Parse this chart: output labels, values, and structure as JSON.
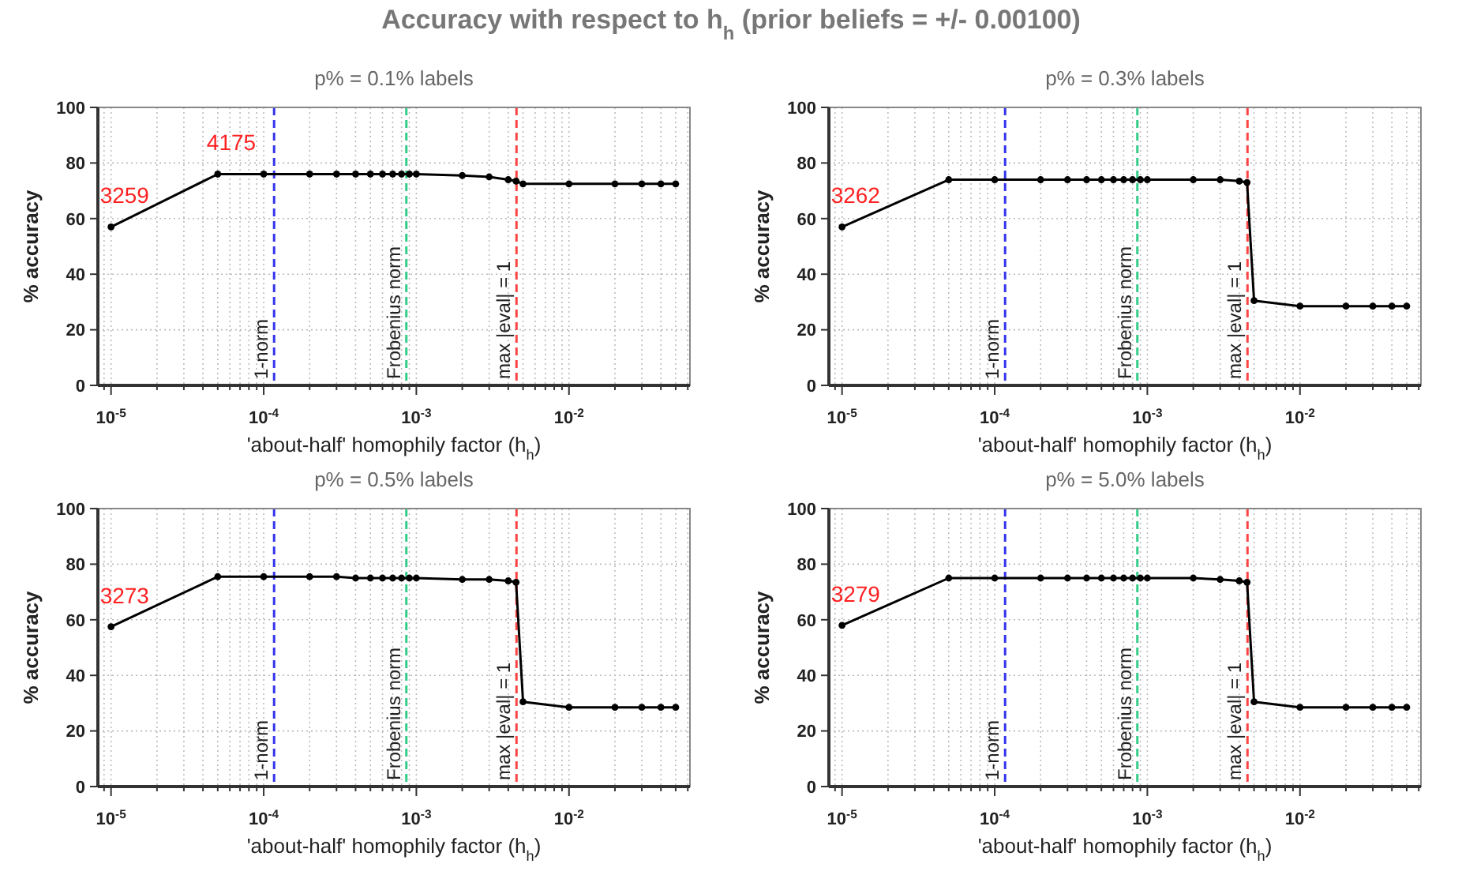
{
  "chart_data": [
    {
      "type": "line",
      "title": "Accuracy with respect to h$_{h}$ (prior beliefs = +/- 0.00100)",
      "subtitle": "p% = 0.1% labels",
      "xlabel": "'about-half' homophily factor (h$_{h}$)",
      "ylabel": "% accuracy",
      "log": "x",
      "grid": true,
      "marker": "circle",
      "line_style": "solid",
      "x": [
        1e-05,
        5e-05,
        0.0001,
        0.0002,
        0.0003,
        0.0004,
        0.0005,
        0.0006,
        0.0007,
        0.0008,
        0.0009,
        0.001,
        0.002,
        0.003,
        0.004,
        0.0045,
        0.005,
        0.01,
        0.02,
        0.03,
        0.04,
        0.05
      ],
      "series": [
        {
          "color": "#000000",
          "values": [
            57,
            76,
            76,
            76,
            76,
            76,
            76,
            76,
            76,
            76,
            76,
            76,
            75.5,
            75,
            74,
            73.5,
            72.5,
            72.5,
            72.5,
            72.5,
            72.5,
            72.5
          ]
        }
      ],
      "xlim": [
        8.2e-06,
        0.062
      ],
      "xticks": [
        {
          "value": 9e-06,
          "label": null
        },
        {
          "value": 1e-05,
          "label": "10$^{-5}$"
        },
        {
          "value": 2e-05,
          "label": null
        },
        {
          "value": 3e-05,
          "label": null
        },
        {
          "value": 4e-05,
          "label": null
        },
        {
          "value": 5e-05,
          "label": null
        },
        {
          "value": 6e-05,
          "label": null
        },
        {
          "value": 7e-05,
          "label": null
        },
        {
          "value": 8e-05,
          "label": null
        },
        {
          "value": 9e-05,
          "label": null
        },
        {
          "value": 0.0001,
          "label": "10$^{-4}$"
        },
        {
          "value": 0.0002,
          "label": null
        },
        {
          "value": 0.0003,
          "label": null
        },
        {
          "value": 0.0004,
          "label": null
        },
        {
          "value": 0.0005,
          "label": null
        },
        {
          "value": 0.0006,
          "label": null
        },
        {
          "value": 0.0007,
          "label": null
        },
        {
          "value": 0.0008,
          "label": null
        },
        {
          "value": 0.0009,
          "label": null
        },
        {
          "value": 0.001,
          "label": "10$^{-3}$"
        },
        {
          "value": 0.002,
          "label": null
        },
        {
          "value": 0.003,
          "label": null
        },
        {
          "value": 0.004,
          "label": null
        },
        {
          "value": 0.005,
          "label": null
        },
        {
          "value": 0.006,
          "label": null
        },
        {
          "value": 0.007,
          "label": null
        },
        {
          "value": 0.008,
          "label": null
        },
        {
          "value": 0.009,
          "label": null
        },
        {
          "value": 0.01,
          "label": "10$^{-2}$"
        },
        {
          "value": 0.02,
          "label": null
        },
        {
          "value": 0.03,
          "label": null
        },
        {
          "value": 0.04,
          "label": null
        },
        {
          "value": 0.05,
          "label": null
        },
        {
          "value": 0.06,
          "label": null
        }
      ],
      "ylim": [
        0,
        100
      ],
      "yticks": [
        0,
        20,
        40,
        60,
        80,
        100
      ],
      "ref_lines": [
        {
          "axis": "x",
          "value": 0.000117,
          "label": "1-norm",
          "color": "#3333ee",
          "line_style": "dashed"
        },
        {
          "axis": "x",
          "value": 0.00086,
          "label": "Frobenius norm",
          "color": "#33cc88",
          "line_style": "dashed"
        },
        {
          "axis": "x",
          "value": 0.00453,
          "color": "#ff4444",
          "line_style": "dashed"
        }
      ],
      "annotations": [
        {
          "text": "3259",
          "x": 1e-05,
          "y": 57
        },
        {
          "text": "4175",
          "x": 5e-05,
          "y": 76
        },
        {
          "text": "max |eval| = 1",
          "x": 0.00453
        }
      ]
    },
    {
      "type": "line",
      "subtitle": "p% = 0.3% labels",
      "xlabel": "'about-half' homophily factor (h$_{h}$)",
      "ylabel": "% accuracy",
      "log": "x",
      "grid": true,
      "marker": "circle",
      "line_style": "solid",
      "x": [
        1e-05,
        5e-05,
        0.0001,
        0.0002,
        0.0003,
        0.0004,
        0.0005,
        0.0006,
        0.0007,
        0.0008,
        0.0009,
        0.001,
        0.002,
        0.003,
        0.004,
        0.0045,
        0.005,
        0.01,
        0.02,
        0.03,
        0.04,
        0.05
      ],
      "series": [
        {
          "color": "#000000",
          "values": [
            57,
            74,
            74,
            74,
            74,
            74,
            74,
            74,
            74,
            74,
            74,
            74,
            74,
            74,
            73.5,
            73,
            30.5,
            28.5,
            28.5,
            28.5,
            28.5,
            28.5
          ]
        }
      ],
      "xlim": [
        8.2e-06,
        0.062
      ],
      "xticks": [
        {
          "value": 9e-06,
          "label": null
        },
        {
          "value": 1e-05,
          "label": "10$^{-5}$"
        },
        {
          "value": 2e-05,
          "label": null
        },
        {
          "value": 3e-05,
          "label": null
        },
        {
          "value": 4e-05,
          "label": null
        },
        {
          "value": 5e-05,
          "label": null
        },
        {
          "value": 6e-05,
          "label": null
        },
        {
          "value": 7e-05,
          "label": null
        },
        {
          "value": 8e-05,
          "label": null
        },
        {
          "value": 9e-05,
          "label": null
        },
        {
          "value": 0.0001,
          "label": "10$^{-4}$"
        },
        {
          "value": 0.0002,
          "label": null
        },
        {
          "value": 0.0003,
          "label": null
        },
        {
          "value": 0.0004,
          "label": null
        },
        {
          "value": 0.0005,
          "label": null
        },
        {
          "value": 0.0006,
          "label": null
        },
        {
          "value": 0.0007,
          "label": null
        },
        {
          "value": 0.0008,
          "label": null
        },
        {
          "value": 0.0009,
          "label": null
        },
        {
          "value": 0.001,
          "label": "10$^{-3}$"
        },
        {
          "value": 0.002,
          "label": null
        },
        {
          "value": 0.003,
          "label": null
        },
        {
          "value": 0.004,
          "label": null
        },
        {
          "value": 0.005,
          "label": null
        },
        {
          "value": 0.006,
          "label": null
        },
        {
          "value": 0.007,
          "label": null
        },
        {
          "value": 0.008,
          "label": null
        },
        {
          "value": 0.009,
          "label": null
        },
        {
          "value": 0.01,
          "label": "10$^{-2}$"
        },
        {
          "value": 0.02,
          "label": null
        },
        {
          "value": 0.03,
          "label": null
        },
        {
          "value": 0.04,
          "label": null
        },
        {
          "value": 0.05,
          "label": null
        },
        {
          "value": 0.06,
          "label": null
        }
      ],
      "ylim": [
        0,
        100
      ],
      "yticks": [
        0,
        20,
        40,
        60,
        80,
        100
      ],
      "ref_lines": [
        {
          "axis": "x",
          "value": 0.000117,
          "label": "1-norm",
          "color": "#3333ee",
          "line_style": "dashed"
        },
        {
          "axis": "x",
          "value": 0.00086,
          "label": "Frobenius norm",
          "color": "#33cc88",
          "line_style": "dashed"
        },
        {
          "axis": "x",
          "value": 0.00453,
          "color": "#ff4444",
          "line_style": "dashed"
        }
      ],
      "annotations": [
        {
          "text": "3262",
          "x": 1e-05,
          "y": 57
        },
        {
          "text": "max |eval| = 1",
          "x": 0.00453
        }
      ]
    },
    {
      "type": "line",
      "subtitle": "p% = 0.5% labels",
      "xlabel": "'about-half' homophily factor (h$_{h}$)",
      "ylabel": "% accuracy",
      "log": "x",
      "grid": true,
      "marker": "circle",
      "line_style": "solid",
      "x": [
        1e-05,
        5e-05,
        0.0001,
        0.0002,
        0.0003,
        0.0004,
        0.0005,
        0.0006,
        0.0007,
        0.0008,
        0.0009,
        0.001,
        0.002,
        0.003,
        0.004,
        0.0045,
        0.005,
        0.01,
        0.02,
        0.03,
        0.04,
        0.05
      ],
      "series": [
        {
          "color": "#000000",
          "values": [
            57.5,
            75.5,
            75.5,
            75.5,
            75.5,
            75,
            75,
            75,
            75,
            75,
            75,
            75,
            74.5,
            74.5,
            74,
            73.5,
            30.5,
            28.5,
            28.5,
            28.5,
            28.5,
            28.5
          ]
        }
      ],
      "xlim": [
        8.2e-06,
        0.062
      ],
      "xticks": [
        {
          "value": 9e-06,
          "label": null
        },
        {
          "value": 1e-05,
          "label": "10$^{-5}$"
        },
        {
          "value": 2e-05,
          "label": null
        },
        {
          "value": 3e-05,
          "label": null
        },
        {
          "value": 4e-05,
          "label": null
        },
        {
          "value": 5e-05,
          "label": null
        },
        {
          "value": 6e-05,
          "label": null
        },
        {
          "value": 7e-05,
          "label": null
        },
        {
          "value": 8e-05,
          "label": null
        },
        {
          "value": 9e-05,
          "label": null
        },
        {
          "value": 0.0001,
          "label": "10$^{-4}$"
        },
        {
          "value": 0.0002,
          "label": null
        },
        {
          "value": 0.0003,
          "label": null
        },
        {
          "value": 0.0004,
          "label": null
        },
        {
          "value": 0.0005,
          "label": null
        },
        {
          "value": 0.0006,
          "label": null
        },
        {
          "value": 0.0007,
          "label": null
        },
        {
          "value": 0.0008,
          "label": null
        },
        {
          "value": 0.0009,
          "label": null
        },
        {
          "value": 0.001,
          "label": "10$^{-3}$"
        },
        {
          "value": 0.002,
          "label": null
        },
        {
          "value": 0.003,
          "label": null
        },
        {
          "value": 0.004,
          "label": null
        },
        {
          "value": 0.005,
          "label": null
        },
        {
          "value": 0.006,
          "label": null
        },
        {
          "value": 0.007,
          "label": null
        },
        {
          "value": 0.008,
          "label": null
        },
        {
          "value": 0.009,
          "label": null
        },
        {
          "value": 0.01,
          "label": "10$^{-2}$"
        },
        {
          "value": 0.02,
          "label": null
        },
        {
          "value": 0.03,
          "label": null
        },
        {
          "value": 0.04,
          "label": null
        },
        {
          "value": 0.05,
          "label": null
        },
        {
          "value": 0.06,
          "label": null
        }
      ],
      "ylim": [
        0,
        100
      ],
      "yticks": [
        0,
        20,
        40,
        60,
        80,
        100
      ],
      "ref_lines": [
        {
          "axis": "x",
          "value": 0.000117,
          "label": "1-norm",
          "color": "#3333ee",
          "line_style": "dashed"
        },
        {
          "axis": "x",
          "value": 0.00086,
          "label": "Frobenius norm",
          "color": "#33cc88",
          "line_style": "dashed"
        },
        {
          "axis": "x",
          "value": 0.00453,
          "color": "#ff4444",
          "line_style": "dashed"
        }
      ],
      "annotations": [
        {
          "text": "3273",
          "x": 1e-05,
          "y": 57.5
        },
        {
          "text": "max |eval| = 1",
          "x": 0.00453
        }
      ]
    },
    {
      "type": "line",
      "subtitle": "p% = 5.0% labels",
      "xlabel": "'about-half' homophily factor (h$_{h}$)",
      "ylabel": "% accuracy",
      "log": "x",
      "grid": true,
      "marker": "circle",
      "line_style": "solid",
      "x": [
        1e-05,
        5e-05,
        0.0001,
        0.0002,
        0.0003,
        0.0004,
        0.0005,
        0.0006,
        0.0007,
        0.0008,
        0.0009,
        0.001,
        0.002,
        0.003,
        0.004,
        0.0045,
        0.005,
        0.01,
        0.02,
        0.03,
        0.04,
        0.05
      ],
      "series": [
        {
          "color": "#000000",
          "values": [
            58,
            75,
            75,
            75,
            75,
            75,
            75,
            75,
            75,
            75,
            75,
            75,
            75,
            74.5,
            74,
            73.5,
            30.5,
            28.5,
            28.5,
            28.5,
            28.5,
            28.5
          ]
        }
      ],
      "xlim": [
        8.2e-06,
        0.062
      ],
      "xticks": [
        {
          "value": 9e-06,
          "label": null
        },
        {
          "value": 1e-05,
          "label": "10$^{-5}$"
        },
        {
          "value": 2e-05,
          "label": null
        },
        {
          "value": 3e-05,
          "label": null
        },
        {
          "value": 4e-05,
          "label": null
        },
        {
          "value": 5e-05,
          "label": null
        },
        {
          "value": 6e-05,
          "label": null
        },
        {
          "value": 7e-05,
          "label": null
        },
        {
          "value": 8e-05,
          "label": null
        },
        {
          "value": 9e-05,
          "label": null
        },
        {
          "value": 0.0001,
          "label": "10$^{-4}$"
        },
        {
          "value": 0.0002,
          "label": null
        },
        {
          "value": 0.0003,
          "label": null
        },
        {
          "value": 0.0004,
          "label": null
        },
        {
          "value": 0.0005,
          "label": null
        },
        {
          "value": 0.0006,
          "label": null
        },
        {
          "value": 0.0007,
          "label": null
        },
        {
          "value": 0.0008,
          "label": null
        },
        {
          "value": 0.0009,
          "label": null
        },
        {
          "value": 0.001,
          "label": "10$^{-3}$"
        },
        {
          "value": 0.002,
          "label": null
        },
        {
          "value": 0.003,
          "label": null
        },
        {
          "value": 0.004,
          "label": null
        },
        {
          "value": 0.005,
          "label": null
        },
        {
          "value": 0.006,
          "label": null
        },
        {
          "value": 0.007,
          "label": null
        },
        {
          "value": 0.008,
          "label": null
        },
        {
          "value": 0.009,
          "label": null
        },
        {
          "value": 0.01,
          "label": "10$^{-2}$"
        },
        {
          "value": 0.02,
          "label": null
        },
        {
          "value": 0.03,
          "label": null
        },
        {
          "value": 0.04,
          "label": null
        },
        {
          "value": 0.05,
          "label": null
        },
        {
          "value": 0.06,
          "label": null
        }
      ],
      "ylim": [
        0,
        100
      ],
      "yticks": [
        0,
        20,
        40,
        60,
        80,
        100
      ],
      "ref_lines": [
        {
          "axis": "x",
          "value": 0.000117,
          "label": "1-norm",
          "color": "#3333ee",
          "line_style": "dashed"
        },
        {
          "axis": "x",
          "value": 0.00086,
          "label": "Frobenius norm",
          "color": "#33cc88",
          "line_style": "dashed"
        },
        {
          "axis": "x",
          "value": 0.00453,
          "color": "#ff4444",
          "line_style": "dashed"
        }
      ],
      "annotations": [
        {
          "text": "3279",
          "x": 1e-05,
          "y": 58
        },
        {
          "text": "max |eval| = 1",
          "x": 0.00453
        }
      ]
    }
  ]
}
